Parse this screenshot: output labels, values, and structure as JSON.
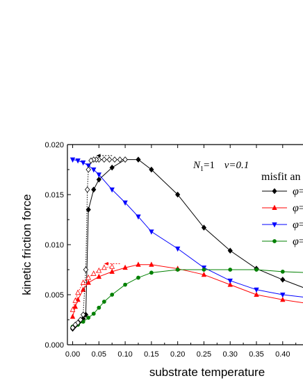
{
  "chart_data": {
    "type": "line",
    "xlabel": "substrate temperature",
    "ylabel": "kinetic friction force",
    "xlim": [
      -0.01,
      0.44
    ],
    "ylim": [
      0.0,
      0.02
    ],
    "x_ticks": [
      "0.00",
      "0.05",
      "0.10",
      "0.15",
      "0.20",
      "0.25",
      "0.30",
      "0.35",
      "0.40"
    ],
    "y_ticks": [
      "0.000",
      "0.005",
      "0.010",
      "0.015",
      "0.020"
    ],
    "annotation": {
      "n_symbol": "N",
      "n_subscript": "1",
      "n_value": "=1",
      "v_text": "v=0.1"
    },
    "legend": {
      "title": "misfit an",
      "placement": "right",
      "entries": [
        {
          "symbol": "φ",
          "text": "="
        },
        {
          "symbol": "φ",
          "text": "="
        },
        {
          "symbol": "φ",
          "text": "="
        },
        {
          "symbol": "φ",
          "text": "="
        }
      ]
    },
    "series": [
      {
        "color": "#000000",
        "marker": "diamond",
        "x": [
          0.0,
          0.005,
          0.01,
          0.015,
          0.02,
          0.025,
          0.03,
          0.04,
          0.05,
          0.075,
          0.1,
          0.125,
          0.15,
          0.2,
          0.25,
          0.3,
          0.35,
          0.4,
          0.45
        ],
        "y": [
          0.0016,
          0.0019,
          0.0021,
          0.0024,
          0.0026,
          0.003,
          0.0135,
          0.0155,
          0.0165,
          0.0177,
          0.0185,
          0.0185,
          0.0175,
          0.015,
          0.0117,
          0.0094,
          0.0076,
          0.0065,
          0.0055
        ]
      },
      {
        "color": "#ff0000",
        "marker": "triangle-up",
        "x": [
          0.0,
          0.005,
          0.01,
          0.02,
          0.03,
          0.05,
          0.075,
          0.1,
          0.125,
          0.15,
          0.2,
          0.25,
          0.3,
          0.35,
          0.4,
          0.45
        ],
        "y": [
          0.0028,
          0.0038,
          0.0045,
          0.0055,
          0.0062,
          0.0068,
          0.0073,
          0.0077,
          0.008,
          0.008,
          0.0076,
          0.007,
          0.006,
          0.005,
          0.0045,
          0.0041
        ]
      },
      {
        "color": "#0000ff",
        "marker": "triangle-down",
        "x": [
          0.0,
          0.01,
          0.02,
          0.03,
          0.04,
          0.05,
          0.075,
          0.1,
          0.125,
          0.15,
          0.2,
          0.25,
          0.3,
          0.35,
          0.4,
          0.45
        ],
        "y": [
          0.0185,
          0.0184,
          0.0182,
          0.0179,
          0.0175,
          0.017,
          0.0155,
          0.0142,
          0.0128,
          0.0113,
          0.0096,
          0.0077,
          0.0064,
          0.0055,
          0.005,
          0.0047
        ]
      },
      {
        "color": "#008000",
        "marker": "circle",
        "x": [
          0.0,
          0.01,
          0.02,
          0.03,
          0.04,
          0.05,
          0.06,
          0.075,
          0.1,
          0.125,
          0.15,
          0.2,
          0.25,
          0.3,
          0.35,
          0.4,
          0.45
        ],
        "y": [
          0.0018,
          0.002,
          0.0023,
          0.0027,
          0.0031,
          0.0037,
          0.0043,
          0.005,
          0.006,
          0.0067,
          0.0072,
          0.0075,
          0.0075,
          0.0075,
          0.0075,
          0.0073,
          0.0072
        ]
      },
      {
        "color": "#000000",
        "marker": "diamond-open",
        "style": "dotted",
        "x": [
          0.1,
          0.09,
          0.08,
          0.07,
          0.06,
          0.05,
          0.045,
          0.04,
          0.035,
          0.03,
          0.028,
          0.025,
          0.02,
          0.015,
          0.01,
          0.005,
          0.0
        ],
        "y": [
          0.0185,
          0.0185,
          0.0185,
          0.0185,
          0.0185,
          0.0185,
          0.0185,
          0.0185,
          0.0184,
          0.0175,
          0.0155,
          0.0075,
          0.003,
          0.0025,
          0.0022,
          0.002,
          0.0017
        ]
      },
      {
        "color": "#ff0000",
        "marker": "triangle-open",
        "style": "dotted",
        "x": [
          0.075,
          0.06,
          0.05,
          0.04,
          0.03,
          0.02,
          0.01,
          0.005,
          0.0
        ],
        "y": [
          0.0078,
          0.0077,
          0.0074,
          0.0071,
          0.0067,
          0.0062,
          0.0052,
          0.0044,
          0.0035
        ]
      }
    ],
    "arrows": [
      {
        "color": "#000000",
        "x_from": 0.075,
        "x_to": 0.045,
        "y": 0.0189
      },
      {
        "color": "#ff0000",
        "x_from": 0.09,
        "x_to": 0.06,
        "y": 0.0081
      }
    ]
  }
}
